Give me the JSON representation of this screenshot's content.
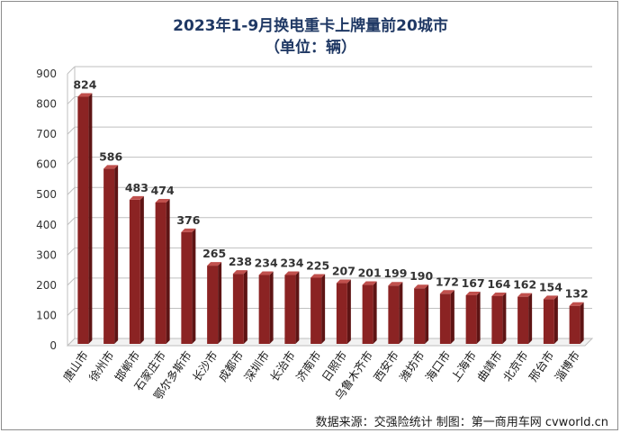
{
  "chart_data": {
    "type": "bar",
    "title": "2023年1-9月换电重卡上牌量前20城市",
    "subtitle": "（单位：辆）",
    "categories": [
      "唐山市",
      "徐州市",
      "邯郸市",
      "石家庄市",
      "鄂尔多斯市",
      "长沙市",
      "成都市",
      "深圳市",
      "长治市",
      "济南市",
      "日照市",
      "乌鲁木齐市",
      "西安市",
      "潍坊市",
      "海口市",
      "上海市",
      "曲靖市",
      "北京市",
      "邢台市",
      "淄博市"
    ],
    "values": [
      824,
      586,
      483,
      474,
      376,
      265,
      238,
      234,
      234,
      225,
      207,
      201,
      199,
      190,
      172,
      167,
      164,
      162,
      154,
      132
    ],
    "yticks": [
      0,
      100,
      200,
      300,
      400,
      500,
      600,
      700,
      800,
      900
    ],
    "ylim": [
      0,
      900
    ],
    "xlabel": "",
    "ylabel": "",
    "grid": true,
    "legend": "none",
    "bar_color": "#8b2323",
    "bar_top_color": "#c0504d",
    "bar_side_color": "#5e1414"
  },
  "source_text": "数据来源：交强险统计   制图：第一商用车网 cvworld.cn"
}
